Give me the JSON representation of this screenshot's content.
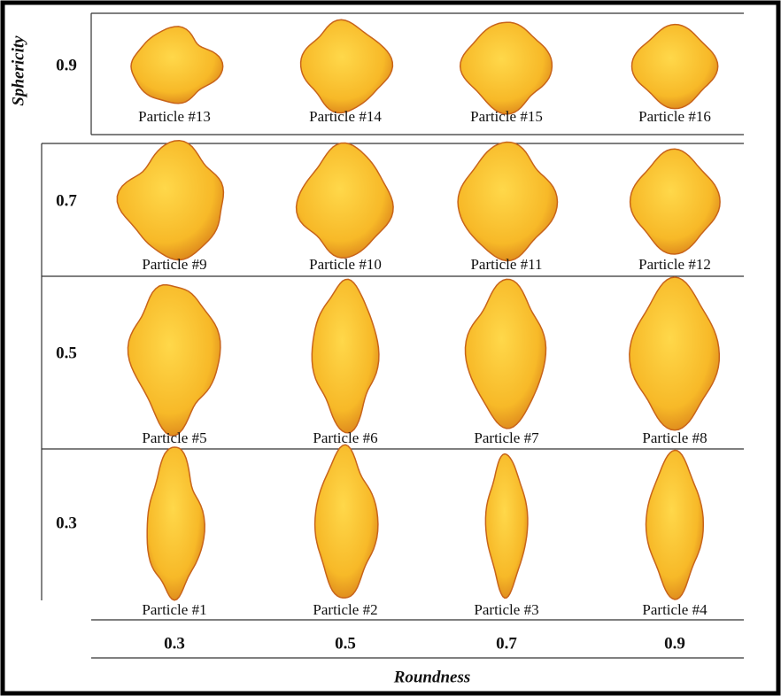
{
  "y_axis_label": "Sphericity",
  "x_axis_label": "Roundness",
  "rows": [
    {
      "label": "0.9",
      "particles": [
        "Particle #13",
        "Particle #14",
        "Particle #15",
        "Particle #16"
      ]
    },
    {
      "label": "0.7",
      "particles": [
        "Particle #9",
        "Particle #10",
        "Particle #11",
        "Particle #12"
      ]
    },
    {
      "label": "0.5",
      "particles": [
        "Particle #5",
        "Particle #6",
        "Particle #7",
        "Particle #8"
      ]
    },
    {
      "label": "0.3",
      "particles": [
        "Particle #1",
        "Particle #2",
        "Particle #3",
        "Particle #4"
      ]
    }
  ],
  "columns": [
    "0.3",
    "0.5",
    "0.7",
    "0.9"
  ]
}
